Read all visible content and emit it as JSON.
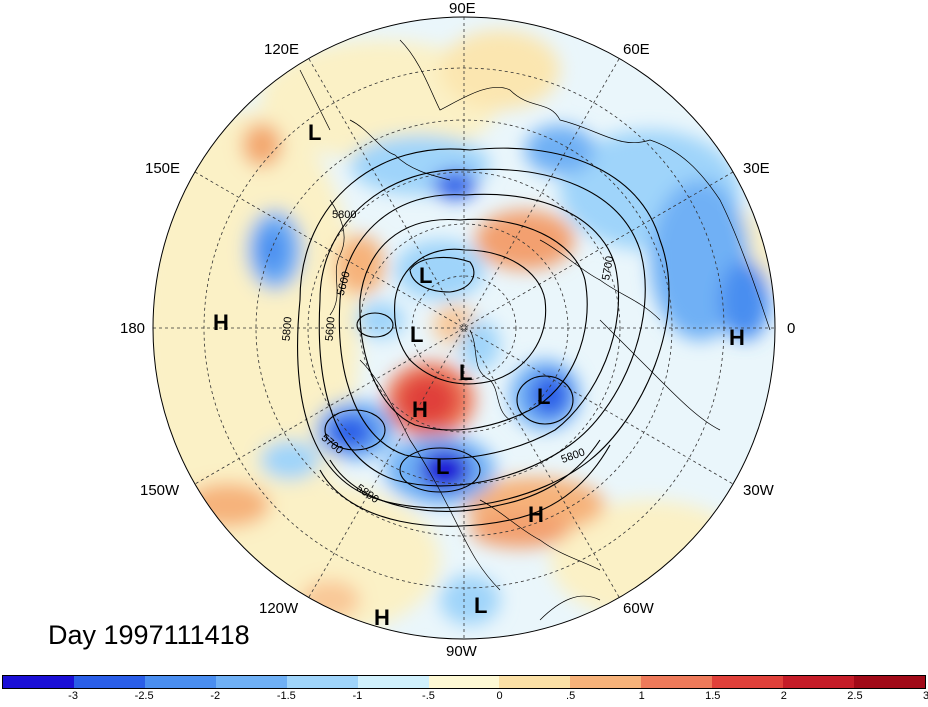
{
  "title": "Day 1997111418",
  "longitude_labels": {
    "deg90E": "90E",
    "deg60E": "60E",
    "deg30E": "30E",
    "deg0": "0",
    "deg30W": "30W",
    "deg60W": "60W",
    "deg90W": "90W",
    "deg120W": "120W",
    "deg150W": "150W",
    "deg180": "180",
    "deg150E": "150E",
    "deg120E": "120E"
  },
  "pressure_centers": [
    {
      "type": "L",
      "name": "north-pacific-low"
    },
    {
      "type": "L",
      "name": "siberia-low"
    },
    {
      "type": "L",
      "name": "arctic-low"
    },
    {
      "type": "L",
      "name": "canada-arctic-low"
    },
    {
      "type": "L",
      "name": "atlantic-low"
    },
    {
      "type": "L",
      "name": "central-us-low"
    },
    {
      "type": "L",
      "name": "gulf-low"
    },
    {
      "type": "H",
      "name": "alaska-high"
    },
    {
      "type": "H",
      "name": "dateline-high"
    },
    {
      "type": "H",
      "name": "europe-high"
    },
    {
      "type": "H",
      "name": "subtropical-atlantic-high"
    },
    {
      "type": "H",
      "name": "east-pacific-high"
    }
  ],
  "contour_labels": [
    "5800",
    "5600",
    "5600",
    "5800",
    "5700",
    "5800",
    "5800",
    "5700"
  ],
  "colorbar": {
    "colors": [
      "#1b0fd6",
      "#2a5ee8",
      "#4a8ef0",
      "#6fb0f5",
      "#9fd4fa",
      "#d0f0fc",
      "#fdf8d4",
      "#fbe0a6",
      "#f6b27a",
      "#ee7a5a",
      "#e0403a",
      "#c51c28",
      "#a10a18"
    ],
    "tick_labels": [
      "-3",
      "-2.5",
      "-2",
      "-1.5",
      "-1",
      "-.5",
      "0",
      ".5",
      "1",
      "1.5",
      "2",
      "2.5",
      "3"
    ]
  }
}
